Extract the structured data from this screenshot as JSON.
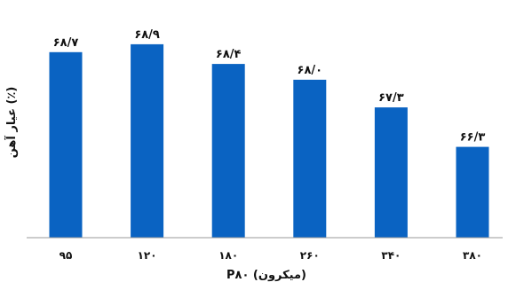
{
  "chart_data": {
    "type": "bar",
    "categories": [
      "۹۵",
      "۱۲۰",
      "۱۸۰",
      "۲۶۰",
      "۳۴۰",
      "۳۸۰"
    ],
    "values": [
      68.7,
      68.9,
      68.4,
      68.0,
      67.3,
      66.3
    ],
    "data_labels": [
      "۶۸/۷",
      "۶۸/۹",
      "۶۸/۴",
      "۶۸/۰",
      "۶۷/۳",
      "۶۶/۳"
    ],
    "xlabel": "P۸۰ (میکرون)",
    "ylabel": "عیار آهن (٪)",
    "ylim": [
      64.0,
      69.2
    ],
    "grid": false,
    "bar_color": "#0a63c2"
  }
}
